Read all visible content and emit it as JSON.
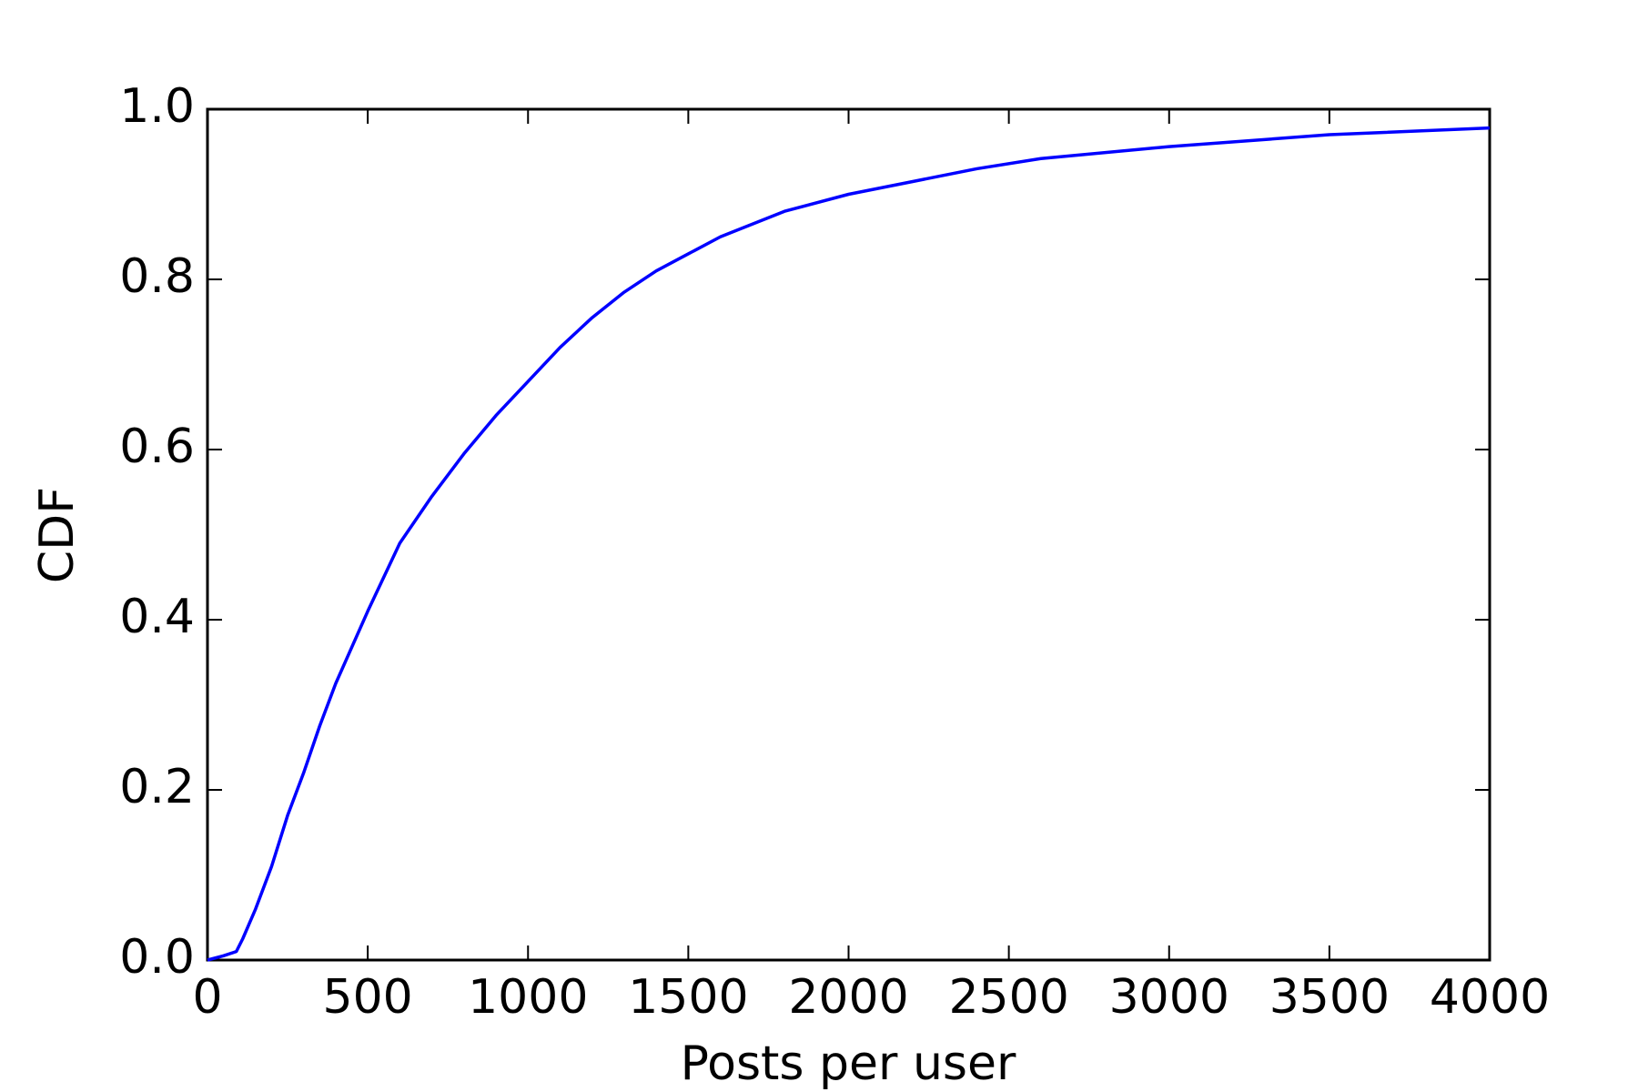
{
  "chart_data": {
    "type": "line",
    "x_label": "Posts per user",
    "y_label": "CDF",
    "x": [
      0,
      50,
      90,
      110,
      150,
      200,
      250,
      300,
      350,
      400,
      500,
      600,
      700,
      800,
      900,
      1000,
      1100,
      1200,
      1300,
      1400,
      1500,
      1600,
      1800,
      2000,
      2200,
      2400,
      2600,
      3000,
      3500,
      4000
    ],
    "series": [
      {
        "name": "CDF",
        "color": "#0000ff",
        "values": [
          0.0,
          0.005,
          0.01,
          0.025,
          0.06,
          0.11,
          0.17,
          0.22,
          0.275,
          0.325,
          0.41,
          0.49,
          0.545,
          0.595,
          0.64,
          0.68,
          0.72,
          0.755,
          0.785,
          0.81,
          0.83,
          0.85,
          0.88,
          0.9,
          0.915,
          0.93,
          0.942,
          0.956,
          0.97,
          0.978
        ]
      }
    ],
    "xlim": [
      0,
      4000
    ],
    "ylim": [
      0,
      1
    ],
    "xticks": [
      0,
      500,
      1000,
      1500,
      2000,
      2500,
      3000,
      3500,
      4000
    ],
    "yticks": [
      {
        "value": 0,
        "label": "0.0"
      },
      0.2,
      0.4,
      0.6,
      0.8,
      {
        "value": 1,
        "label": "1.0"
      }
    ],
    "grid": false
  }
}
